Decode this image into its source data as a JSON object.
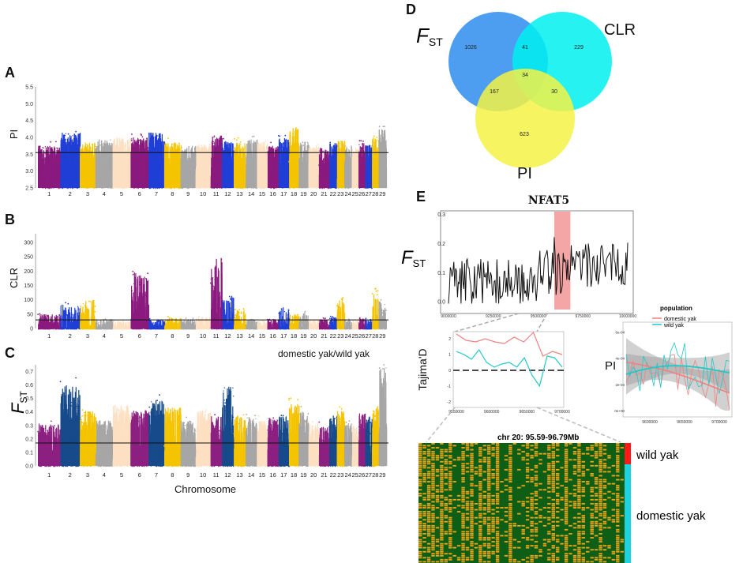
{
  "panels": {
    "A": {
      "letter": "A",
      "ylabel": "PI",
      "yticks": [
        "2.5",
        "3.0",
        "3.5",
        "4.0",
        "4.5",
        "5.0",
        "5.5"
      ],
      "ylim": [
        2.5,
        5.5
      ],
      "threshold": 3.55
    },
    "B": {
      "letter": "B",
      "ylabel": "CLR",
      "yticks": [
        "0",
        "50",
        "100",
        "150",
        "200",
        "250",
        "300"
      ],
      "ylim": [
        0,
        330
      ],
      "threshold": 30,
      "comparison": "domestic yak/wild yak"
    },
    "C": {
      "letter": "C",
      "ylabel": "F",
      "ylabel_sub": "ST",
      "yticks": [
        "0.0",
        "0.1",
        "0.2",
        "0.3",
        "0.4",
        "0.5",
        "0.6",
        "0.7"
      ],
      "ylim": [
        0,
        0.75
      ],
      "threshold": 0.17,
      "xlabel": "Chromosome"
    },
    "D": {
      "letter": "D",
      "sets": {
        "fst_label": "F",
        "fst_sub": "ST",
        "clr_label": "CLR",
        "pi_label": "PI"
      },
      "counts": {
        "fst_only": "1026",
        "clr_only": "229",
        "pi_only": "623",
        "fst_clr": "41",
        "fst_pi": "167",
        "clr_pi": "30",
        "all": "34"
      }
    },
    "E": {
      "letter": "E",
      "gene": "NFAT5",
      "fst_label": "F",
      "fst_sub": "ST",
      "fst_yticks": [
        "0.0",
        "0.1",
        "0.2",
        "0.3"
      ],
      "fst_xticks": [
        "9000000",
        "9250000",
        "9500000",
        "9750000",
        "10000000"
      ],
      "tajima_label": "Tajima'D",
      "tajima_yticks": [
        "2",
        "1",
        "0",
        "-1",
        "-2"
      ],
      "tajima_xticks": [
        "9550000",
        "9600000",
        "9650000",
        "9700000"
      ],
      "pi_label": "PI",
      "pi_yticks": [
        "6e-04",
        "4e-04",
        "2e-04",
        "0e+00"
      ],
      "pi_xticks": [
        "9600000",
        "9650000",
        "9700000"
      ],
      "legend_title": "population",
      "legend_items": [
        "domestic yak",
        "wild yak"
      ],
      "heatmap_title": "chr 20: 95.59-96.79Mb",
      "heatmap_labels": [
        "wild yak",
        "domestic yak"
      ]
    }
  },
  "colors": {
    "c1": "#8b1a7e",
    "c2": "#1f3fd6",
    "c3": "#f5c400",
    "c4": "#a6a6a6",
    "c5": "#fde0c2",
    "c2C": "#174a8b",
    "c1C": "#8c2080",
    "domestic": "#f08080",
    "wild": "#20c8c8",
    "heat_bg": "#0e5e16",
    "heat_fg": "#e8a21b",
    "venn_fst": "#3a94f0",
    "venn_clr": "#00f0f0",
    "venn_pi": "#f4f245"
  },
  "chart_data": [
    {
      "type": "scatter",
      "id": "A",
      "title": "",
      "ylabel": "PI",
      "xlabel": "",
      "categories": [
        "1",
        "2",
        "3",
        "4",
        "5",
        "6",
        "7",
        "8",
        "9",
        "10",
        "11",
        "12",
        "13",
        "14",
        "15",
        "16",
        "17",
        "18",
        "19",
        "20",
        "21",
        "22",
        "23",
        "24",
        "25",
        "26",
        "27",
        "28",
        "29"
      ],
      "ylim": [
        2.5,
        5.5
      ],
      "threshold": 3.55
    },
    {
      "type": "scatter",
      "id": "B",
      "title": "",
      "ylabel": "CLR",
      "xlabel": "",
      "categories": [
        "1",
        "2",
        "3",
        "4",
        "5",
        "6",
        "7",
        "8",
        "9",
        "10",
        "11",
        "12",
        "13",
        "14",
        "15",
        "16",
        "17",
        "18",
        "19",
        "20",
        "21",
        "22",
        "23",
        "24",
        "25",
        "26",
        "27",
        "28",
        "29"
      ],
      "ylim": [
        0,
        330
      ],
      "threshold": 30
    },
    {
      "type": "scatter",
      "id": "C",
      "title": "",
      "ylabel": "FST",
      "xlabel": "Chromosome",
      "categories": [
        "1",
        "2",
        "3",
        "4",
        "5",
        "6",
        "7",
        "8",
        "9",
        "10",
        "11",
        "12",
        "13",
        "14",
        "15",
        "16",
        "17",
        "18",
        "19",
        "20",
        "21",
        "22",
        "23",
        "24",
        "25",
        "26",
        "27",
        "28",
        "29"
      ],
      "ylim": [
        0,
        0.75
      ],
      "threshold": 0.17
    },
    {
      "type": "line",
      "id": "E-fst",
      "ylabel": "FST",
      "xlim": [
        9000000,
        10000000
      ],
      "ylim": [
        -0.02,
        0.3
      ],
      "highlight": [
        9590000,
        9680000
      ]
    },
    {
      "type": "line",
      "id": "E-tajima",
      "ylabel": "Tajima'D",
      "series": [
        {
          "name": "domestic yak",
          "values": [
            2.3,
            1.9,
            1.8,
            2.0,
            1.8,
            1.7,
            2.1,
            1.8,
            2.4,
            0.9,
            1.2,
            1.0
          ]
        },
        {
          "name": "wild yak",
          "values": [
            1.2,
            1.0,
            0.7,
            1.3,
            0.5,
            0.2,
            0.4,
            0.5,
            0.2,
            0.8,
            -0.3,
            -1.0,
            0.9,
            0.8,
            0.2
          ]
        }
      ]
    },
    {
      "type": "line",
      "id": "E-pi",
      "ylabel": "PI",
      "series": [
        {
          "name": "domestic yak"
        },
        {
          "name": "wild yak"
        }
      ]
    }
  ]
}
